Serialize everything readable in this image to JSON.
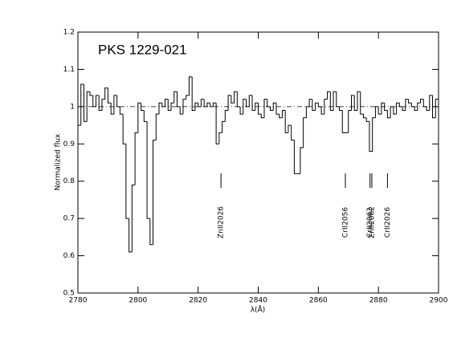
{
  "chart_data": {
    "type": "step",
    "title": "PKS 1229-021",
    "xlabel": "λ(Å)",
    "ylabel": "Normalized flux",
    "xlim": [
      2780,
      2900
    ],
    "ylim": [
      0.5,
      1.2
    ],
    "xticks": [
      2780,
      2800,
      2820,
      2840,
      2860,
      2880,
      2900
    ],
    "yticks": [
      0.5,
      0.6,
      0.7,
      0.8,
      0.9,
      1,
      1.1,
      1.2
    ],
    "continuum": 1,
    "x": [
      2780,
      2781,
      2782,
      2783,
      2784,
      2785,
      2786,
      2787,
      2788,
      2789,
      2790,
      2791,
      2792,
      2793,
      2794,
      2795,
      2796,
      2797,
      2798,
      2799,
      2800,
      2801,
      2802,
      2803,
      2804,
      2805,
      2806,
      2807,
      2808,
      2809,
      2810,
      2811,
      2812,
      2813,
      2814,
      2815,
      2816,
      2817,
      2818,
      2819,
      2820,
      2821,
      2822,
      2823,
      2824,
      2825,
      2826,
      2827,
      2828,
      2829,
      2830,
      2831,
      2832,
      2833,
      2834,
      2835,
      2836,
      2837,
      2838,
      2839,
      2840,
      2841,
      2842,
      2843,
      2844,
      2845,
      2846,
      2847,
      2848,
      2849,
      2850,
      2851,
      2852,
      2853,
      2854,
      2855,
      2856,
      2857,
      2858,
      2859,
      2860,
      2861,
      2862,
      2863,
      2864,
      2865,
      2866,
      2867,
      2868,
      2869,
      2870,
      2871,
      2872,
      2873,
      2874,
      2875,
      2876,
      2877,
      2878,
      2879,
      2880,
      2881,
      2882,
      2883,
      2884,
      2885,
      2886,
      2887,
      2888,
      2889,
      2890,
      2891,
      2892,
      2893,
      2894,
      2895,
      2896,
      2897,
      2898,
      2899
    ],
    "values": [
      0.95,
      1.06,
      0.96,
      1.04,
      1.03,
      1.0,
      1.03,
      0.99,
      1.02,
      1.05,
      1.01,
      0.98,
      1.03,
      1.0,
      0.98,
      0.9,
      0.7,
      0.61,
      0.79,
      0.93,
      1.01,
      0.99,
      0.96,
      0.7,
      0.63,
      0.91,
      0.98,
      1.01,
      1.0,
      1.02,
      0.99,
      1.01,
      1.04,
      1.0,
      0.98,
      1.02,
      1.03,
      1.08,
      0.99,
      1.01,
      1.0,
      1.02,
      1.0,
      1.01,
      1.0,
      1.01,
      0.9,
      0.93,
      0.96,
      0.99,
      1.03,
      1.01,
      1.04,
      1.0,
      0.98,
      1.02,
      1.0,
      1.03,
      0.99,
      1.01,
      0.98,
      0.97,
      1.02,
      1.0,
      0.99,
      1.01,
      0.98,
      0.97,
      0.99,
      0.93,
      0.95,
      0.91,
      0.82,
      0.82,
      0.89,
      0.97,
      1.0,
      1.02,
      0.99,
      1.01,
      1.0,
      0.98,
      1.02,
      1.04,
      0.99,
      1.04,
      1.0,
      0.99,
      0.93,
      0.93,
      0.99,
      1.03,
      0.99,
      1.04,
      0.98,
      0.97,
      0.96,
      0.88,
      0.97,
      1.0,
      0.98,
      1.01,
      0.99,
      0.97,
      1.0,
      0.98,
      1.01,
      1.0,
      0.99,
      1.02,
      1.01,
      1.0,
      0.99,
      1.01,
      1.02,
      1.0,
      0.99,
      1.03,
      0.97,
      1.02
    ],
    "color": "#000000",
    "annotations": [
      {
        "label": "ZnII2026",
        "x": 2827.6
      },
      {
        "label": "CrII2056",
        "x": 2869
      },
      {
        "label": "CrII2062",
        "x": 2877.2
      },
      {
        "label": "ZnII2062",
        "x": 2877.8
      },
      {
        "label": "CrII2026",
        "x": 2883
      }
    ]
  }
}
